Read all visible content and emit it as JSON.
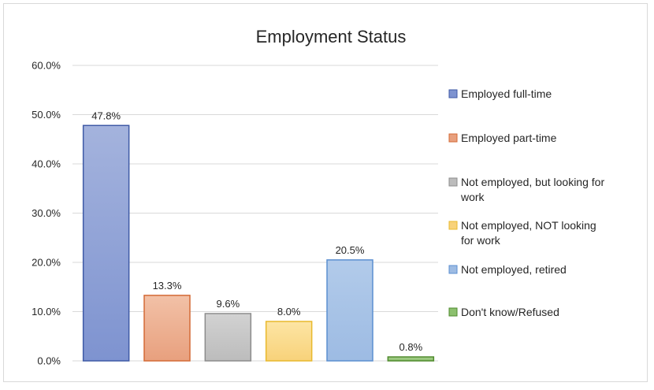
{
  "chart_data": {
    "type": "bar",
    "title": "Employment Status",
    "xlabel": "",
    "ylabel": "",
    "ylim": [
      0,
      60
    ],
    "y_ticks": [
      0,
      10,
      20,
      30,
      40,
      50,
      60
    ],
    "y_tick_labels": [
      "0.0%",
      "10.0%",
      "20.0%",
      "30.0%",
      "40.0%",
      "50.0%",
      "60.0%"
    ],
    "grid": true,
    "legend_position": "right",
    "categories": [
      "Employed full-time",
      "Employed part-time",
      "Not employed, but looking for work",
      "Not employed, NOT looking for work",
      "Not employed, retired",
      "Don't know/Refused"
    ],
    "legend_lines": [
      [
        "Employed full-time"
      ],
      [
        "Employed part-time"
      ],
      [
        "Not employed, but looking for",
        "work"
      ],
      [
        "Not employed, NOT looking",
        "for work"
      ],
      [
        "Not employed, retired"
      ],
      [
        "Don't know/Refused"
      ]
    ],
    "values": [
      47.8,
      13.3,
      9.6,
      8.0,
      20.5,
      0.8
    ],
    "value_labels": [
      "47.8%",
      "13.3%",
      "9.6%",
      "8.0%",
      "20.5%",
      "0.8%"
    ],
    "colors": [
      {
        "fill_top": "#a4b3dd",
        "fill_bottom": "#7e93d0",
        "stroke": "#3f5aa6"
      },
      {
        "fill_top": "#f2c1a7",
        "fill_bottom": "#e8a07e",
        "stroke": "#d46a36"
      },
      {
        "fill_top": "#d2d2d2",
        "fill_bottom": "#bcbcbc",
        "stroke": "#8c8c8c"
      },
      {
        "fill_top": "#fde5a4",
        "fill_bottom": "#f8d27a",
        "stroke": "#e8b92d"
      },
      {
        "fill_top": "#b2cbea",
        "fill_bottom": "#9dbbe3",
        "stroke": "#5b8fd0"
      },
      {
        "fill_top": "#a8d08f",
        "fill_bottom": "#8cc06e",
        "stroke": "#4e8a2c"
      }
    ]
  }
}
